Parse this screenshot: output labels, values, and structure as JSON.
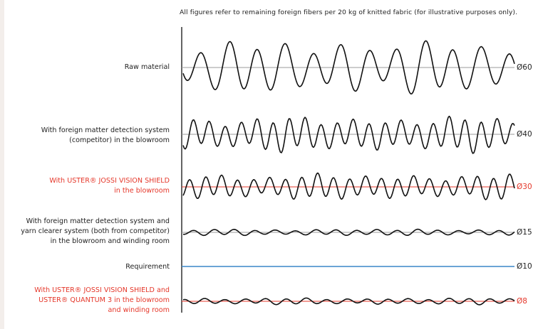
{
  "note": "All figures refer to remaining foreign fibers per 20 kg of knitted fabric (for illustrative purposes only).",
  "colors": {
    "red": "#e5372a",
    "blue": "#3a86c8",
    "grey": "#9a9a9a",
    "black": "#111111"
  },
  "rows": [
    {
      "id": "raw",
      "lines": [
        "Raw material"
      ],
      "value": "Ø60",
      "level": 60,
      "label_color": "black",
      "baseline_color": "grey",
      "highlight": false
    },
    {
      "id": "competitor-blowroom",
      "lines": [
        "With foreign matter detection system",
        "(competitor) in the blowroom"
      ],
      "value": "Ø40",
      "level": 40,
      "label_color": "black",
      "baseline_color": "grey",
      "highlight": false
    },
    {
      "id": "jossi-blowroom",
      "lines": [
        "With USTER® JOSSI VISION SHIELD",
        "in the blowroom"
      ],
      "value": "Ø30",
      "level": 30,
      "label_color": "red",
      "baseline_color": "red",
      "highlight": true
    },
    {
      "id": "competitor-both",
      "lines": [
        "With foreign matter detection system and",
        "yarn clearer system (both from competitor)",
        "in the blowroom and winding room"
      ],
      "value": "Ø15",
      "level": 15,
      "label_color": "black",
      "baseline_color": "grey",
      "highlight": false
    },
    {
      "id": "requirement",
      "lines": [
        "Requirement"
      ],
      "value": "Ø10",
      "level": 10,
      "label_color": "black",
      "baseline_color": "blue",
      "highlight": false
    },
    {
      "id": "jossi-quantum",
      "lines": [
        "With USTER® JOSSI VISION SHIELD and",
        "USTER® QUANTUM 3 in the blowroom",
        "and winding room"
      ],
      "value": "Ø8",
      "level": 8,
      "label_color": "red",
      "baseline_color": "red",
      "highlight": true
    }
  ]
}
